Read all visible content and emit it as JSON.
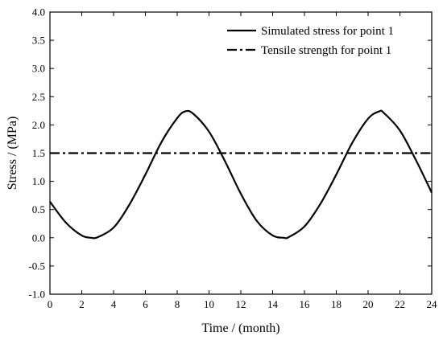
{
  "chart_data": {
    "type": "line",
    "xlabel": "Time / (month)",
    "ylabel": "Stress / (MPa)",
    "xlim": [
      0,
      24
    ],
    "ylim": [
      -1.0,
      4.0
    ],
    "xticks": [
      0,
      2,
      4,
      6,
      8,
      10,
      12,
      14,
      16,
      18,
      20,
      22,
      24
    ],
    "yticks": [
      -1.0,
      -0.5,
      0.0,
      0.5,
      1.0,
      1.5,
      2.0,
      2.5,
      3.0,
      3.5,
      4.0
    ],
    "xtick_labels": [
      "0",
      "2",
      "4",
      "6",
      "8",
      "10",
      "12",
      "14",
      "16",
      "18",
      "20",
      "22",
      "24"
    ],
    "ytick_labels": [
      "-1.0",
      "-0.5",
      "0.0",
      "0.5",
      "1.0",
      "1.5",
      "2.0",
      "2.5",
      "3.0",
      "3.5",
      "4.0"
    ],
    "grid": false,
    "legend_position": "top-right",
    "series": [
      {
        "name": "Simulated stress for point 1",
        "style": "solid",
        "color": "#000000",
        "x": [
          0,
          1,
          2,
          2.6,
          3,
          4,
          5,
          6,
          7,
          8,
          8.5,
          9,
          10,
          11,
          12,
          13,
          14,
          14.7,
          15,
          16,
          17,
          18,
          19,
          20,
          20.7,
          21,
          22,
          23,
          24
        ],
        "y": [
          0.64,
          0.27,
          0.04,
          0.0,
          0.01,
          0.18,
          0.59,
          1.12,
          1.69,
          2.12,
          2.24,
          2.2,
          1.88,
          1.36,
          0.78,
          0.3,
          0.04,
          0.0,
          0.01,
          0.2,
          0.6,
          1.12,
          1.68,
          2.11,
          2.24,
          2.21,
          1.9,
          1.38,
          0.8
        ]
      },
      {
        "name": "Tensile strength for point 1",
        "style": "dashdot",
        "color": "#000000",
        "x": [
          0,
          24
        ],
        "y": [
          1.5,
          1.5
        ]
      }
    ]
  }
}
